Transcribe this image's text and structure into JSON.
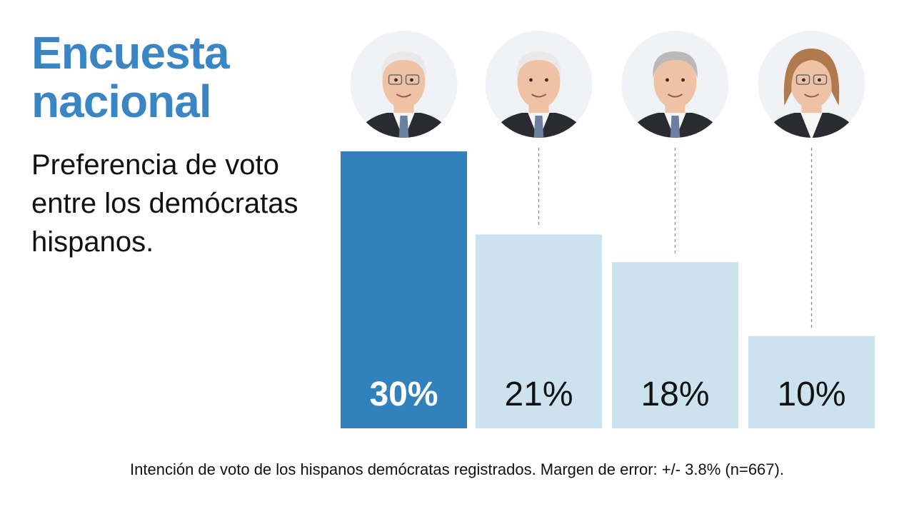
{
  "title": "Encuesta nacional",
  "subtitle": "Preferencia de voto entre los demócratas hispanos.",
  "footnote": "Intención de voto de los hispanos demócratas registrados. Margen de error: +/- 3.8% (n=667).",
  "chart_data": {
    "type": "bar",
    "categories": [
      "",
      "",
      "",
      ""
    ],
    "values": [
      30,
      21,
      18,
      10
    ],
    "value_labels": [
      "30%",
      "21%",
      "18%",
      "10%"
    ],
    "ylim": [
      0,
      30
    ],
    "grid": false,
    "colors": {
      "highlight": "#3181bd",
      "default": "#cce3ef",
      "dashed_line": "#8a8a8a"
    }
  },
  "avatars": [
    {
      "icon": "person-photo-icon",
      "hair": "white",
      "suit": "dark",
      "glasses": true
    },
    {
      "icon": "person-photo-icon",
      "hair": "white",
      "suit": "dark",
      "glasses": false
    },
    {
      "icon": "person-photo-icon",
      "hair": "gray",
      "suit": "dark",
      "glasses": false
    },
    {
      "icon": "person-photo-icon",
      "hair": "blond",
      "suit": "dark",
      "glasses": true
    }
  ]
}
